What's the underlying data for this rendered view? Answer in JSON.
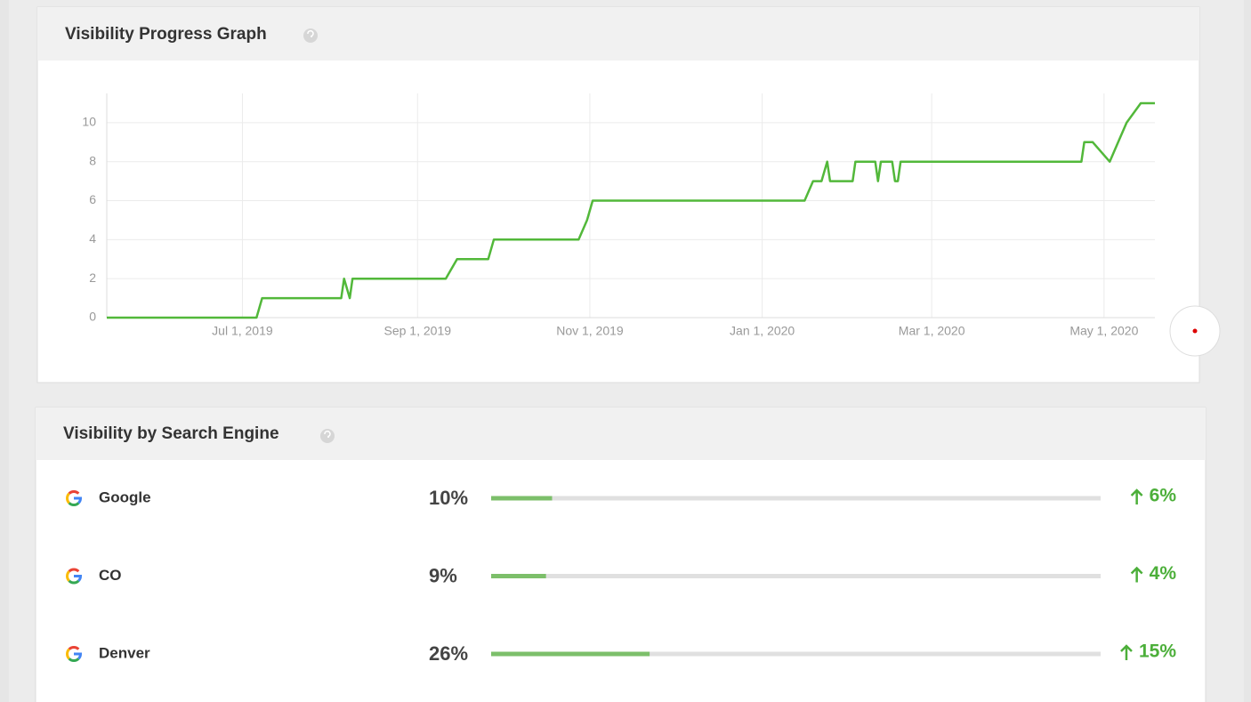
{
  "chart_data": {
    "type": "line",
    "title": "Visibility Progress Graph",
    "x": [
      "2019-05-14",
      "2019-07-06",
      "2019-07-08",
      "2019-08-05",
      "2019-08-06",
      "2019-08-08",
      "2019-08-09",
      "2019-09-11",
      "2019-09-15",
      "2019-09-26",
      "2019-09-28",
      "2019-10-28",
      "2019-10-31",
      "2019-11-02",
      "2020-01-16",
      "2020-01-19",
      "2020-01-22",
      "2020-01-24",
      "2020-01-25",
      "2020-02-02",
      "2020-02-03",
      "2020-02-10",
      "2020-02-11",
      "2020-02-12",
      "2020-02-16",
      "2020-02-17",
      "2020-02-18",
      "2020-02-19",
      "2020-04-23",
      "2020-04-24",
      "2020-04-27",
      "2020-05-03",
      "2020-05-06",
      "2020-05-09",
      "2020-05-14",
      "2020-05-19"
    ],
    "values": [
      0,
      0,
      1,
      1,
      2,
      1,
      2,
      2,
      3,
      3,
      4,
      4,
      5,
      6,
      6,
      7,
      7,
      8,
      7,
      7,
      8,
      8,
      7,
      8,
      8,
      7,
      7,
      8,
      8,
      9,
      9,
      8,
      9,
      10,
      11,
      11
    ],
    "color": "#52b83a",
    "xlim": [
      "2019-05-14",
      "2020-05-19"
    ],
    "xticks": [
      {
        "value": "2019-07-01",
        "label": "Jul 1, 2019"
      },
      {
        "value": "2019-09-01",
        "label": "Sep 1, 2019"
      },
      {
        "value": "2019-11-01",
        "label": "Nov 1, 2019"
      },
      {
        "value": "2020-01-01",
        "label": "Jan 1, 2020"
      },
      {
        "value": "2020-03-01",
        "label": "Mar 1, 2020"
      },
      {
        "value": "2020-05-01",
        "label": "May 1, 2020"
      }
    ],
    "ylim": [
      0,
      11.5
    ],
    "yticks": [
      0,
      2,
      4,
      6,
      8,
      10
    ],
    "grid": true
  },
  "engine_panel": {
    "title": "Visibility by Search Engine",
    "color": "#7cbf6a",
    "rows": [
      {
        "name": "Google",
        "share": 10,
        "share_label": "10%",
        "change_label": "6%"
      },
      {
        "name": "CO",
        "share": 9,
        "share_label": "9%",
        "change_label": "4%"
      },
      {
        "name": "Denver",
        "share": 26,
        "share_label": "26%",
        "change_label": "15%"
      }
    ]
  }
}
